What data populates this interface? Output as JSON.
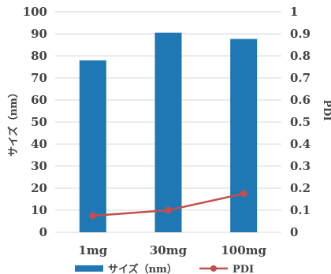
{
  "chart_data": {
    "type": "bar",
    "categories": [
      "1mg",
      "30mg",
      "100mg"
    ],
    "series": [
      {
        "name": "サイズ（nm）",
        "type": "bar",
        "axis": "left",
        "values": [
          78,
          90.5,
          87.7
        ],
        "color": "#1f77b4"
      },
      {
        "name": "PDI",
        "type": "line",
        "axis": "right",
        "values": [
          0.075,
          0.1,
          0.175
        ],
        "color": "#c0504d"
      }
    ],
    "ylabel": "サイズ（nm）",
    "y2label": "PDI",
    "ylim": [
      0,
      100
    ],
    "y2lim": [
      0,
      1
    ],
    "yticks": [
      "0",
      "10",
      "20",
      "30",
      "40",
      "50",
      "60",
      "70",
      "80",
      "90",
      "100"
    ],
    "y2ticks": [
      "0",
      "0.1",
      "0.2",
      "0.3",
      "0.4",
      "0.5",
      "0.6",
      "0.7",
      "0.8",
      "0.9",
      "1"
    ],
    "grid": true,
    "legend": "bottom"
  }
}
